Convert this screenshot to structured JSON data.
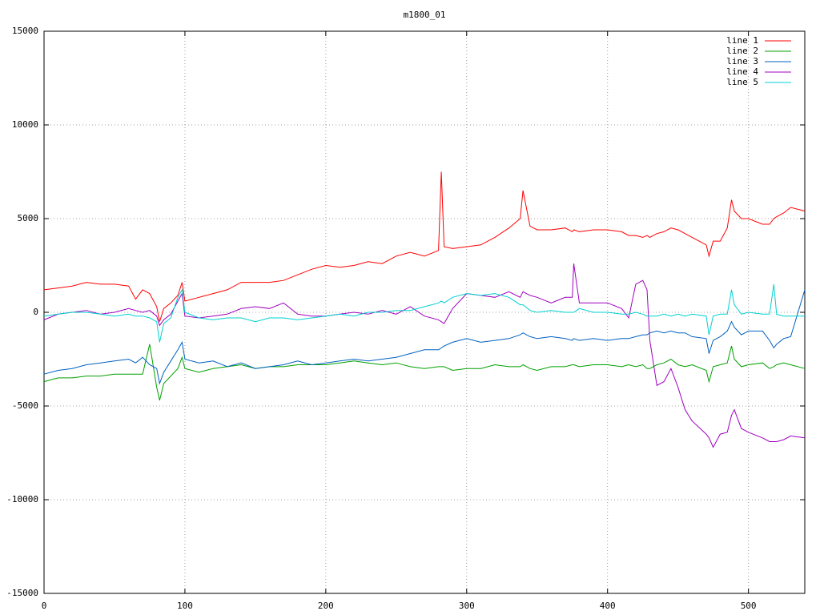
{
  "chart_data": {
    "type": "line",
    "title": "m1800_01",
    "x": [
      0,
      10,
      20,
      30,
      40,
      50,
      60,
      65,
      70,
      75,
      80,
      82,
      85,
      90,
      95,
      98,
      100,
      110,
      120,
      130,
      140,
      150,
      160,
      170,
      180,
      190,
      200,
      210,
      220,
      230,
      240,
      250,
      260,
      270,
      280,
      282,
      284,
      290,
      300,
      310,
      320,
      330,
      338,
      340,
      345,
      350,
      360,
      370,
      375,
      376,
      380,
      390,
      400,
      410,
      415,
      420,
      425,
      428,
      430,
      435,
      440,
      445,
      450,
      455,
      460,
      470,
      472,
      475,
      480,
      485,
      488,
      490,
      495,
      500,
      510,
      515,
      518,
      520,
      525,
      530,
      540
    ],
    "series": [
      {
        "name": "line 1",
        "color": "#ff0000",
        "values": [
          1200,
          1300,
          1400,
          1600,
          1500,
          1500,
          1400,
          700,
          1200,
          1000,
          300,
          -500,
          200,
          500,
          900,
          1600,
          600,
          800,
          1000,
          1200,
          1600,
          1600,
          1600,
          1700,
          2000,
          2300,
          2500,
          2400,
          2500,
          2700,
          2600,
          3000,
          3200,
          3000,
          3300,
          7500,
          3500,
          3400,
          3500,
          3600,
          4000,
          4500,
          5000,
          6500,
          4600,
          4400,
          4400,
          4500,
          4300,
          4400,
          4300,
          4400,
          4400,
          4300,
          4100,
          4100,
          4000,
          4100,
          4000,
          4200,
          4300,
          4500,
          4400,
          4200,
          4000,
          3600,
          3000,
          3800,
          3800,
          4500,
          6000,
          5400,
          5000,
          5000,
          4700,
          4700,
          5000,
          5100,
          5300,
          5600,
          5400
        ]
      },
      {
        "name": "line 2",
        "color": "#00a000",
        "values": [
          -3700,
          -3500,
          -3500,
          -3400,
          -3400,
          -3300,
          -3300,
          -3300,
          -3300,
          -1700,
          -4000,
          -4700,
          -3800,
          -3400,
          -3000,
          -2400,
          -3000,
          -3200,
          -3000,
          -2900,
          -2800,
          -3000,
          -2900,
          -2900,
          -2800,
          -2800,
          -2800,
          -2700,
          -2600,
          -2700,
          -2800,
          -2700,
          -2900,
          -3000,
          -2900,
          -2900,
          -2900,
          -3100,
          -3000,
          -3000,
          -2800,
          -2900,
          -2900,
          -2800,
          -3000,
          -3100,
          -2900,
          -2900,
          -2800,
          -2800,
          -2900,
          -2800,
          -2800,
          -2900,
          -2800,
          -2900,
          -2800,
          -3000,
          -3000,
          -2800,
          -2700,
          -2500,
          -2800,
          -2900,
          -2800,
          -3100,
          -3700,
          -2900,
          -2800,
          -2700,
          -1800,
          -2500,
          -2900,
          -2800,
          -2700,
          -3000,
          -2900,
          -2800,
          -2700,
          -2800,
          -3000
        ]
      },
      {
        "name": "line 3",
        "color": "#0060c0",
        "values": [
          -3300,
          -3100,
          -3000,
          -2800,
          -2700,
          -2600,
          -2500,
          -2700,
          -2400,
          -2800,
          -3000,
          -3800,
          -3200,
          -2600,
          -2000,
          -1600,
          -2500,
          -2700,
          -2600,
          -2900,
          -2700,
          -3000,
          -2900,
          -2800,
          -2600,
          -2800,
          -2700,
          -2600,
          -2500,
          -2600,
          -2500,
          -2400,
          -2200,
          -2000,
          -2000,
          -1900,
          -1800,
          -1600,
          -1400,
          -1600,
          -1500,
          -1400,
          -1200,
          -1100,
          -1300,
          -1400,
          -1300,
          -1400,
          -1500,
          -1400,
          -1500,
          -1400,
          -1500,
          -1400,
          -1400,
          -1300,
          -1200,
          -1200,
          -1100,
          -1000,
          -1100,
          -1000,
          -1100,
          -1100,
          -1300,
          -1400,
          -2200,
          -1500,
          -1300,
          -1000,
          -500,
          -800,
          -1200,
          -1000,
          -1000,
          -1500,
          -1900,
          -1700,
          -1400,
          -1300,
          1200
        ]
      },
      {
        "name": "line 4",
        "color": "#a000c0",
        "values": [
          -400,
          -100,
          0,
          100,
          -100,
          0,
          200,
          100,
          0,
          100,
          -200,
          -700,
          -400,
          -100,
          600,
          1000,
          -200,
          -300,
          -200,
          -100,
          200,
          300,
          200,
          500,
          -100,
          -200,
          -200,
          -100,
          0,
          -100,
          100,
          -100,
          300,
          -200,
          -400,
          -500,
          -600,
          200,
          1000,
          900,
          800,
          1100,
          800,
          1100,
          900,
          800,
          500,
          800,
          800,
          2600,
          500,
          500,
          500,
          200,
          -300,
          1500,
          1700,
          1200,
          -1500,
          -3900,
          -3700,
          -3000,
          -4000,
          -5200,
          -5800,
          -6500,
          -6700,
          -7200,
          -6500,
          -6400,
          -5500,
          -5200,
          -6200,
          -6400,
          -6700,
          -6900,
          -6900,
          -6900,
          -6800,
          -6600,
          -6700
        ]
      },
      {
        "name": "line 5",
        "color": "#00d0d0",
        "values": [
          -200,
          -100,
          0,
          0,
          -100,
          -200,
          -100,
          -200,
          -200,
          -300,
          -500,
          -1600,
          -600,
          -300,
          800,
          1200,
          0,
          -300,
          -400,
          -300,
          -300,
          -500,
          -300,
          -300,
          -400,
          -300,
          -200,
          -100,
          -200,
          0,
          0,
          100,
          100,
          300,
          500,
          600,
          500,
          800,
          1000,
          900,
          1000,
          800,
          400,
          400,
          100,
          0,
          100,
          0,
          0,
          0,
          200,
          0,
          0,
          -100,
          -100,
          0,
          -100,
          -200,
          -200,
          -200,
          -100,
          -200,
          -100,
          -200,
          -100,
          -200,
          -1200,
          -200,
          -100,
          -100,
          1200,
          400,
          -100,
          0,
          -100,
          -100,
          1500,
          -100,
          -200,
          -200,
          -200
        ]
      }
    ],
    "xlim": [
      0,
      540
    ],
    "xticks": [
      0,
      100,
      200,
      300,
      400,
      500
    ],
    "ylim": [
      -15000,
      15000
    ],
    "yticks": [
      -15000,
      -10000,
      -5000,
      0,
      5000,
      10000,
      15000
    ],
    "grid": true,
    "legend": "top-right"
  }
}
